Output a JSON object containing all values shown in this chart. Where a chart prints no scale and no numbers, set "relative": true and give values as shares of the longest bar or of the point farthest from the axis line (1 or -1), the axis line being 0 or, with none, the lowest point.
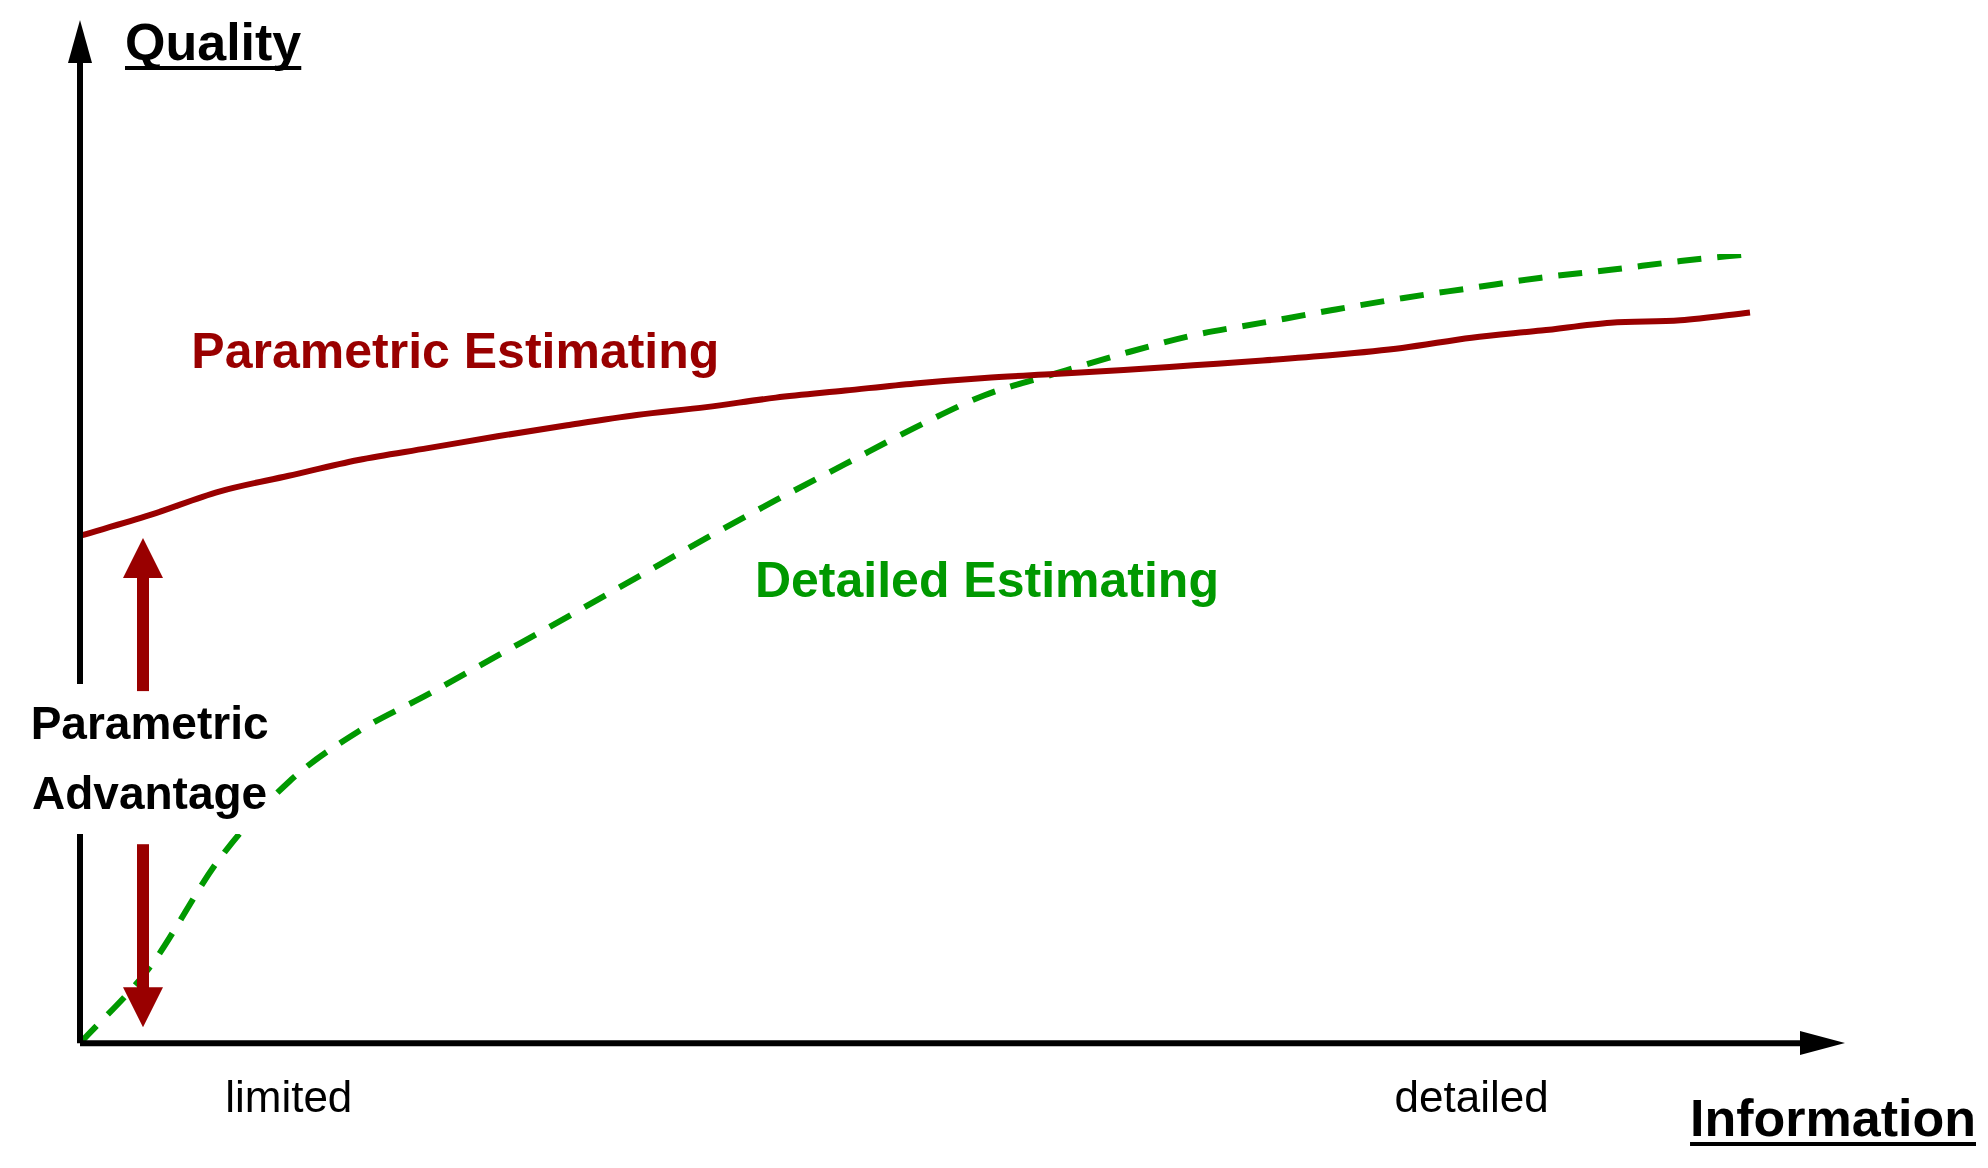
{
  "chart_data": {
    "type": "line",
    "relative": true,
    "ylabel": "Quality",
    "xlabel": "Information",
    "legend": false,
    "grid": false,
    "marker": "none",
    "categories": [
      null,
      null,
      null,
      "limited",
      null,
      null,
      null,
      null,
      null,
      null,
      null,
      null,
      null,
      null,
      null,
      null,
      null,
      null,
      null,
      null,
      "detailed",
      null,
      null,
      null,
      null
    ],
    "series": [
      {
        "name": "Parametric Estimating",
        "color": "#990000",
        "line_style": "solid",
        "values": [
          0.643,
          0.669,
          0.699,
          0.719,
          0.739,
          0.754,
          0.769,
          0.783,
          0.796,
          0.806,
          0.818,
          0.827,
          0.836,
          0.843,
          0.848,
          0.853,
          0.859,
          0.865,
          0.872,
          0.881,
          0.894,
          0.903,
          0.913,
          0.916,
          0.926
        ]
      },
      {
        "name": "Detailed Estimating",
        "color": "#009900",
        "line_style": "dashed",
        "values": [
          0,
          0.096,
          0.233,
          0.331,
          0.395,
          0.442,
          0.491,
          0.54,
          0.59,
          0.64,
          0.688,
          0.734,
          0.78,
          0.821,
          0.848,
          0.874,
          0.897,
          0.913,
          0.929,
          0.944,
          0.957,
          0.97,
          0.98,
          0.991,
          1
        ]
      }
    ],
    "annotations": [
      "Parametric Advantage"
    ]
  }
}
